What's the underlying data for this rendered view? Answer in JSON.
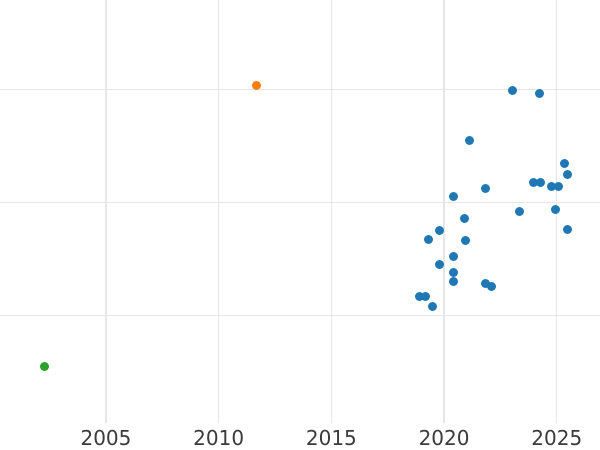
{
  "chart_data": {
    "type": "scatter",
    "title": "",
    "xlabel": "",
    "ylabel": "",
    "grid": true,
    "legend": "none",
    "x_ticks": [
      {
        "label": "2005",
        "year": 2005
      },
      {
        "label": "2010",
        "year": 2010
      },
      {
        "label": "2015",
        "year": 2015
      },
      {
        "label": "2020",
        "year": 2020
      },
      {
        "label": "2025",
        "year": 2025
      }
    ],
    "xlim": [
      2000.3,
      2026.92
    ],
    "ylim": [
      0.05,
      3.79
    ],
    "y_gridlines": [
      1,
      2,
      3
    ],
    "y_axis_note": "y-axis has no visible tick labels; y values are in gridline units estimated from the three unlabeled horizontal gridlines",
    "marker_diameter_px": 9,
    "series": [
      {
        "name": "blue-series",
        "color": "#1f77b4",
        "points": [
          [
            2023.06,
            2.99
          ],
          [
            2024.22,
            2.96
          ],
          [
            2021.11,
            2.55
          ],
          [
            2025.33,
            2.34
          ],
          [
            2025.5,
            2.25
          ],
          [
            2023.95,
            2.18
          ],
          [
            2024.26,
            2.18
          ],
          [
            2024.75,
            2.14
          ],
          [
            2025.1,
            2.14
          ],
          [
            2021.86,
            2.12
          ],
          [
            2020.42,
            2.05
          ],
          [
            2023.33,
            1.92
          ],
          [
            2024.93,
            1.94
          ],
          [
            2020.93,
            1.86
          ],
          [
            2025.5,
            1.76
          ],
          [
            2019.78,
            1.75
          ],
          [
            2019.29,
            1.67
          ],
          [
            2020.95,
            1.66
          ],
          [
            2020.42,
            1.52
          ],
          [
            2019.78,
            1.45
          ],
          [
            2020.42,
            1.38
          ],
          [
            2020.42,
            1.3
          ],
          [
            2021.82,
            1.28
          ],
          [
            2022.1,
            1.26
          ],
          [
            2018.93,
            1.17
          ],
          [
            2019.2,
            1.17
          ],
          [
            2019.47,
            1.08
          ]
        ]
      },
      {
        "name": "orange-series",
        "color": "#ff7f0e",
        "points": [
          [
            2011.66,
            3.03
          ]
        ]
      },
      {
        "name": "green-series",
        "color": "#2ca02c",
        "points": [
          [
            2002.27,
            0.55
          ]
        ]
      }
    ]
  },
  "styles": {
    "background": "#ffffff",
    "grid_color": "#e6e6e6",
    "tick_label_color": "#3b3b3b"
  }
}
